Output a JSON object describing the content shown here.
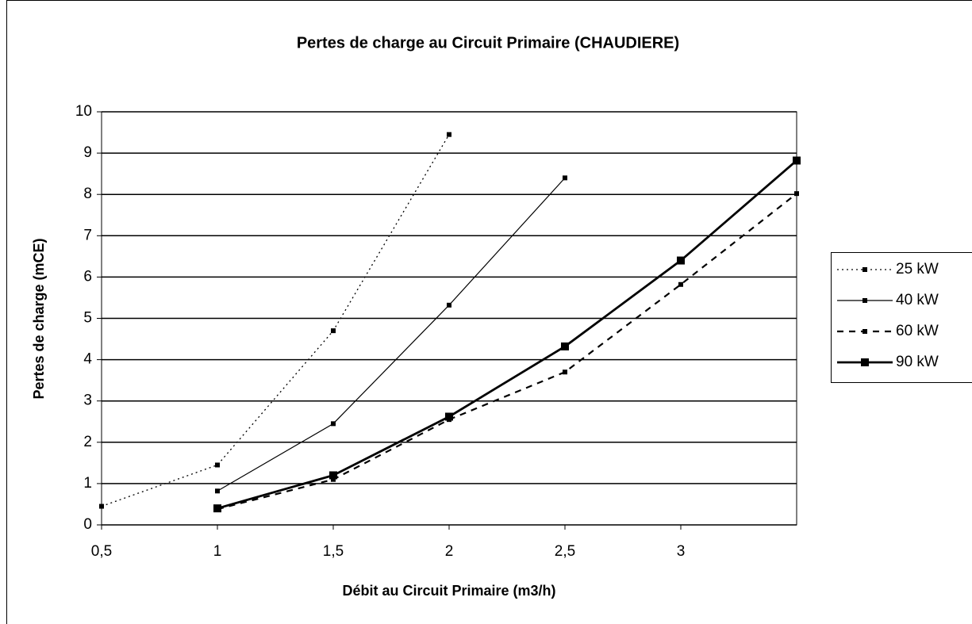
{
  "chart_data": {
    "type": "line",
    "title": "Pertes de charge au Circuit Primaire (CHAUDIERE)",
    "x_label": "Débit au Circuit Primaire (m3/h)",
    "y_label": "Pertes de charge (mCE)",
    "xlim": [
      0.5,
      3.5
    ],
    "xticks": [
      {
        "value": 0.5,
        "label": "0,5"
      },
      1,
      {
        "value": 1.5,
        "label": "1,5"
      },
      2,
      {
        "value": 2.5,
        "label": "2,5"
      },
      3
    ],
    "ylim": [
      0,
      10
    ],
    "yticks": [
      0,
      1,
      2,
      3,
      4,
      5,
      6,
      7,
      8,
      9,
      10
    ],
    "grid": true,
    "legend": "right",
    "series": [
      {
        "name": "25 kW",
        "color": "#000000",
        "style": "dotted",
        "x": [
          0.5,
          1,
          1.5,
          2
        ],
        "values": [
          0.45,
          1.45,
          4.7,
          9.45
        ]
      },
      {
        "name": "40 kW",
        "color": "#000000",
        "style": "solid",
        "x": [
          1,
          1.5,
          2,
          2.5
        ],
        "values": [
          0.82,
          2.45,
          5.32,
          8.4
        ]
      },
      {
        "name": "60 kW",
        "color": "#000000",
        "style": "dashed",
        "x": [
          1,
          1.5,
          2,
          2.5,
          3,
          3.5
        ],
        "values": [
          0.38,
          1.1,
          2.55,
          3.7,
          5.82,
          8.02
        ]
      },
      {
        "name": "90 kW",
        "color": "#000000",
        "style": "bold",
        "x": [
          1,
          1.5,
          2,
          2.5,
          3,
          3.5
        ],
        "values": [
          0.4,
          1.2,
          2.62,
          4.32,
          6.4,
          8.82
        ]
      }
    ]
  }
}
